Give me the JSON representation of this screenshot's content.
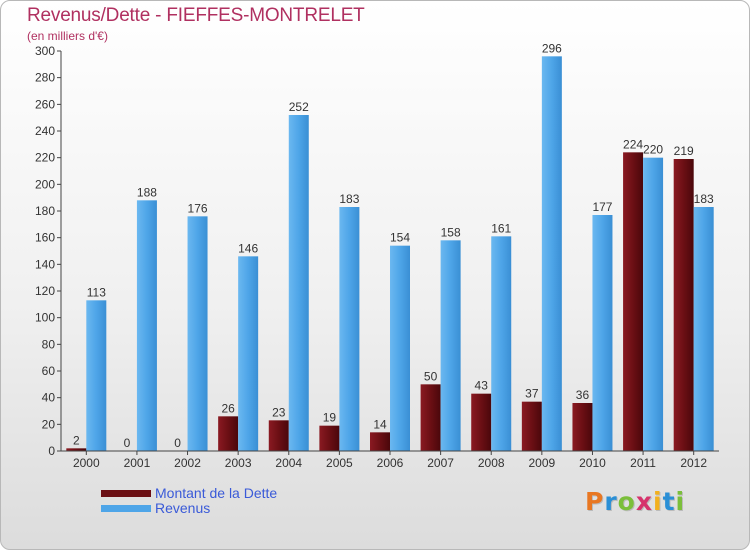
{
  "header": {
    "title": "Revenus/Dette - FIEFFES-MONTRELET",
    "subtitle": "(en milliers d'€)"
  },
  "legend": {
    "items": [
      {
        "label": "Montant de la Dette",
        "color": "#6b0f14"
      },
      {
        "label": "Revenus",
        "color": "#4ea5e8"
      }
    ]
  },
  "logo": {
    "text": "Proxiti",
    "colors": [
      "#e87722",
      "#2a8fd6",
      "#7bbf3a",
      "#d6336c",
      "#f2b01e",
      "#2a8fd6",
      "#7bbf3a"
    ]
  },
  "chart_data": {
    "type": "bar",
    "title": "Revenus/Dette - FIEFFES-MONTRELET",
    "subtitle": "(en milliers d'€)",
    "categories": [
      "2000",
      "2001",
      "2002",
      "2003",
      "2004",
      "2005",
      "2006",
      "2007",
      "2008",
      "2009",
      "2010",
      "2011",
      "2012"
    ],
    "series": [
      {
        "name": "Montant de la Dette",
        "color": "#6b0f14",
        "values": [
          2,
          0,
          0,
          26,
          23,
          19,
          14,
          50,
          43,
          37,
          36,
          224,
          219
        ]
      },
      {
        "name": "Revenus",
        "color": "#4ea5e8",
        "values": [
          113,
          188,
          176,
          146,
          252,
          183,
          154,
          158,
          161,
          296,
          177,
          220,
          183
        ]
      }
    ],
    "ylim": [
      0,
      300
    ],
    "yticks": [
      0,
      20,
      40,
      60,
      80,
      100,
      120,
      140,
      160,
      180,
      200,
      220,
      240,
      260,
      280,
      300
    ],
    "grid": false,
    "legend_position": "bottom-left"
  }
}
